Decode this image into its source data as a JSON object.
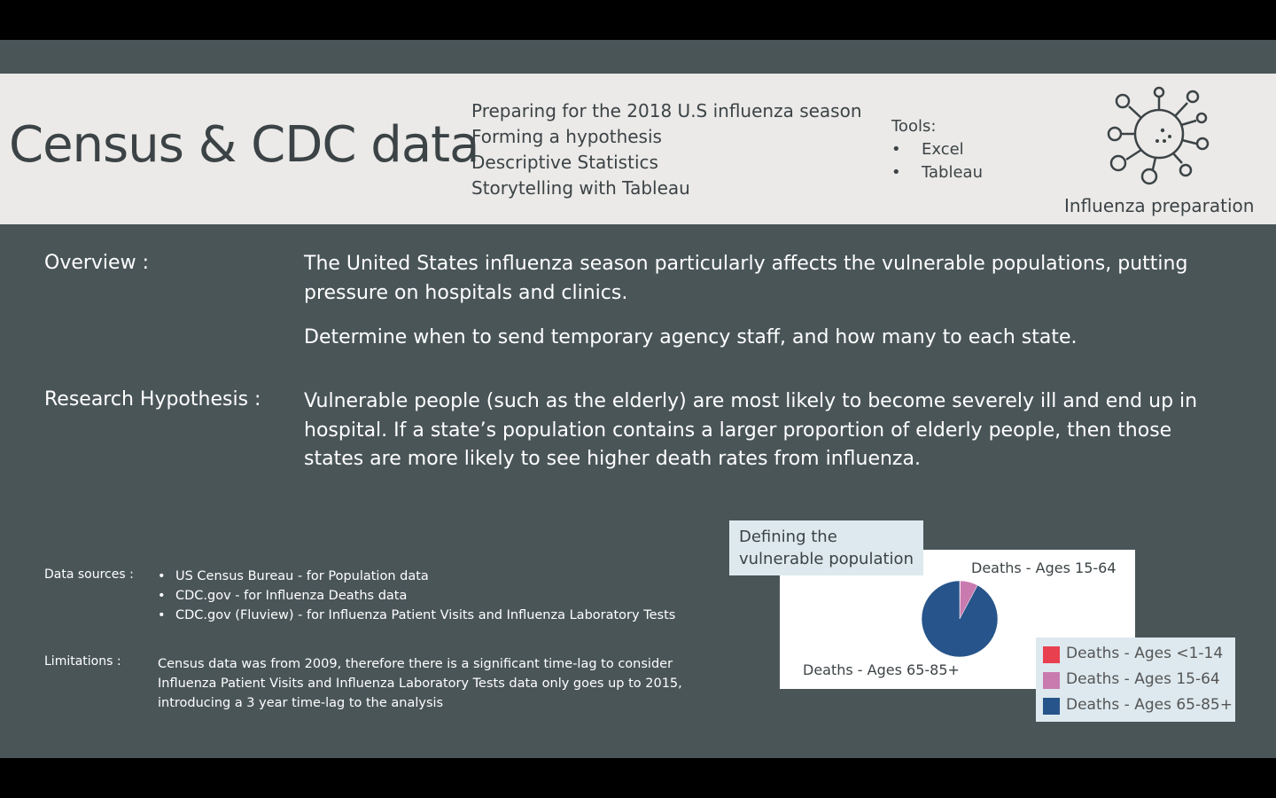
{
  "title": "Census & CDC data",
  "agenda": [
    "Preparing for the 2018 U.S influenza season",
    "Forming a hypothesis",
    "Descriptive Statistics",
    "Storytelling with Tableau"
  ],
  "tools": {
    "heading": "Tools:",
    "items": [
      "Excel",
      "Tableau"
    ]
  },
  "icon": {
    "name": "virus-icon",
    "label": "Influenza preparation"
  },
  "overview": {
    "label": "Overview :",
    "paragraph1": "The United States influenza season particularly affects the vulnerable populations, putting pressure on hospitals and clinics.",
    "paragraph2": "Determine when to send temporary agency staff, and how many to each state."
  },
  "hypothesis": {
    "label": "Research Hypothesis :",
    "text": "Vulnerable people (such as the elderly) are most likely to become severely ill and end up in hospital. If a state’s population contains a larger proportion of elderly people, then those states are more likely to see higher death rates from influenza."
  },
  "data_sources": {
    "label": "Data sources :",
    "items": [
      "US Census Bureau -  for Population data",
      "CDC.gov - for Influenza Deaths data",
      "CDC.gov (Fluview) - for Influenza Patient Visits and Influenza Laboratory Tests"
    ]
  },
  "limitations": {
    "label": "Limitations :",
    "text": "Census data was from 2009,  therefore there is a significant time-lag to consider Influenza Patient Visits and Influenza Laboratory Tests data only goes up to 2015, introducing a 3 year time-lag to the analysis"
  },
  "chart_data": {
    "type": "pie",
    "title": "Defining the vulnerable population",
    "slices": [
      {
        "name": "Deaths - Ages <1-14",
        "value": 0.3,
        "color": "#e8404f"
      },
      {
        "name": "Deaths - Ages 15-64",
        "value": 7.5,
        "color": "#c97bb0"
      },
      {
        "name": "Deaths - Ages 65-85+",
        "value": 92.2,
        "color": "#27548a"
      }
    ],
    "slice_labels": [
      "Deaths - Ages 15-64",
      "Deaths - Ages 65-85+"
    ],
    "legend": [
      "Deaths - Ages <1-14",
      "Deaths - Ages 15-64",
      "Deaths - Ages 65-85+"
    ],
    "legend_position": "bottom-right"
  },
  "colors": {
    "slide_bg": "#4a5558",
    "header_bg": "#ebeae8",
    "accent_panel": "#dde9ef"
  }
}
